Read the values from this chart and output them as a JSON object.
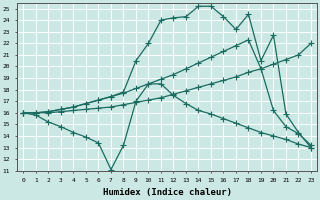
{
  "xlabel": "Humidex (Indice chaleur)",
  "bg_color": "#cce8e4",
  "line_color": "#1a6b60",
  "grid_color": "#ffffff",
  "xlim": [
    -0.5,
    23.5
  ],
  "ylim": [
    11,
    25.5
  ],
  "xticks": [
    0,
    1,
    2,
    3,
    4,
    5,
    6,
    7,
    8,
    9,
    10,
    11,
    12,
    13,
    14,
    15,
    16,
    17,
    18,
    19,
    20,
    21,
    22,
    23
  ],
  "yticks": [
    11,
    12,
    13,
    14,
    15,
    16,
    17,
    18,
    19,
    20,
    21,
    22,
    23,
    24,
    25
  ],
  "line1_x": [
    0,
    1,
    2,
    3,
    4,
    5,
    6,
    7,
    8,
    9,
    10,
    11,
    12,
    13,
    14,
    15,
    16,
    17,
    18,
    19,
    20,
    21,
    22,
    23
  ],
  "line1_y": [
    16.0,
    15.8,
    15.2,
    14.8,
    14.3,
    13.9,
    13.4,
    11.1,
    13.2,
    17.0,
    18.5,
    18.5,
    17.5,
    16.8,
    16.2,
    15.9,
    15.5,
    15.1,
    14.7,
    14.3,
    14.0,
    13.7,
    13.3,
    13.0
  ],
  "line2_x": [
    0,
    1,
    2,
    3,
    4,
    5,
    6,
    7,
    8,
    9,
    10,
    11,
    12,
    13,
    14,
    15,
    16,
    17,
    18,
    19,
    20,
    21,
    22,
    23
  ],
  "line2_y": [
    16.0,
    16.0,
    16.0,
    16.1,
    16.2,
    16.3,
    16.4,
    16.5,
    16.7,
    16.9,
    17.1,
    17.3,
    17.6,
    17.9,
    18.2,
    18.5,
    18.8,
    19.1,
    19.5,
    19.8,
    20.2,
    20.6,
    21.0,
    22.0
  ],
  "line3_x": [
    0,
    1,
    2,
    3,
    4,
    5,
    6,
    7,
    8,
    9,
    10,
    11,
    12,
    13,
    14,
    15,
    16,
    17,
    18,
    19,
    20,
    21,
    22,
    23
  ],
  "line3_y": [
    16.0,
    16.0,
    16.1,
    16.3,
    16.5,
    16.8,
    17.1,
    17.4,
    17.7,
    18.1,
    18.5,
    18.9,
    19.3,
    19.8,
    20.3,
    20.8,
    21.3,
    21.8,
    22.3,
    19.8,
    16.2,
    14.8,
    14.2,
    13.2
  ],
  "line4_x": [
    0,
    1,
    2,
    3,
    4,
    5,
    6,
    7,
    8,
    9,
    10,
    11,
    12,
    13,
    14,
    15,
    16,
    17,
    18,
    19,
    20,
    21,
    22,
    23
  ],
  "line4_y": [
    16.0,
    16.0,
    16.1,
    16.3,
    16.5,
    16.8,
    17.1,
    17.4,
    17.8,
    20.5,
    22.0,
    24.0,
    24.2,
    24.3,
    25.2,
    25.2,
    24.3,
    23.2,
    24.5,
    20.5,
    22.7,
    15.9,
    14.3,
    13.0
  ]
}
